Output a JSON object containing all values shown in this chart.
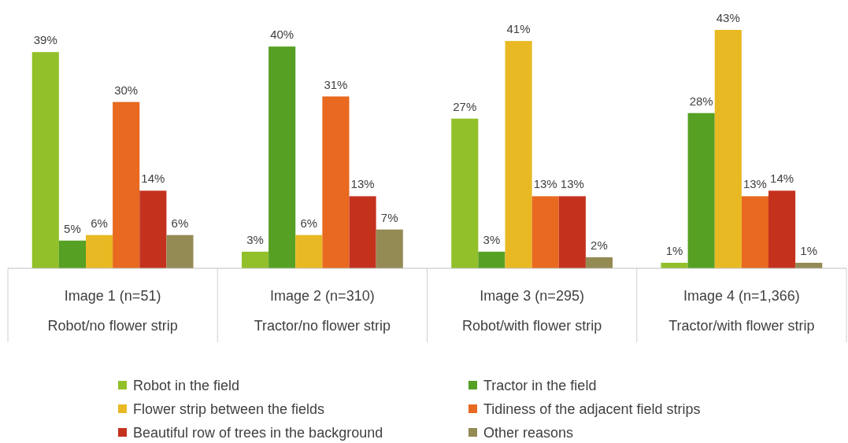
{
  "chart_data": {
    "type": "bar",
    "categories": [
      "Image 1 (n=51)\nRobot/no flower strip",
      "Image 2 (n=310)\nTractor/no flower strip",
      "Image 3 (n=295)\nRobot/with flower strip",
      "Image 4 (n=1,366)\nTractor/with flower strip"
    ],
    "series": [
      {
        "name": "Robot in the field",
        "color": "#92c02a",
        "values": [
          39,
          3,
          27,
          1
        ],
        "value_labels": [
          "39%",
          "3%",
          "27%",
          "1%"
        ]
      },
      {
        "name": "Tractor in the field",
        "color": "#56a024",
        "values": [
          5,
          40,
          3,
          28
        ],
        "value_labels": [
          "5%",
          "40%",
          "3%",
          "28%"
        ]
      },
      {
        "name": "Flower strip between the fields",
        "color": "#e8b923",
        "values": [
          6,
          6,
          41,
          43
        ],
        "value_labels": [
          "6%",
          "6%",
          "41%",
          "43%"
        ]
      },
      {
        "name": "Tidiness of the adjacent field strips",
        "color": "#e8691f",
        "values": [
          30,
          31,
          13,
          13
        ],
        "value_labels": [
          "30%",
          "31%",
          "13%",
          "13%"
        ]
      },
      {
        "name": "Beautiful row of trees in the background",
        "color": "#c4321e",
        "values": [
          14,
          13,
          13,
          14
        ],
        "value_labels": [
          "14%",
          "13%",
          "13%",
          "14%"
        ]
      },
      {
        "name": "Other reasons",
        "color": "#948a54",
        "values": [
          6,
          7,
          2,
          1
        ],
        "value_labels": [
          "6%",
          "7%",
          "2%",
          "1%"
        ]
      }
    ],
    "legend": "bottom"
  }
}
